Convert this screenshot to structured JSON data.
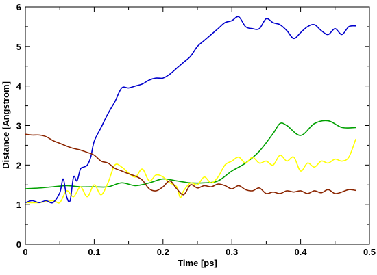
{
  "chart_data": {
    "type": "line",
    "xlabel": "Time [ps]",
    "ylabel": "Distance [Angstrom]",
    "xlim": [
      0,
      0.5
    ],
    "ylim": [
      0,
      6
    ],
    "x_ticks": [
      0,
      0.1,
      0.2,
      0.3,
      0.4,
      0.5
    ],
    "x_tick_labels": [
      "0",
      "0.1",
      "0.2",
      "0.3",
      "0.4",
      "0.5"
    ],
    "y_ticks": [
      0,
      1,
      2,
      3,
      4,
      5,
      6
    ],
    "y_tick_labels": [
      "0",
      "1",
      "2",
      "3",
      "4",
      "5",
      "6"
    ],
    "grid": false,
    "legend": "none",
    "series": [
      {
        "color": "#00a000",
        "x": [
          0.0,
          0.02,
          0.04,
          0.06,
          0.08,
          0.1,
          0.12,
          0.14,
          0.16,
          0.18,
          0.2,
          0.22,
          0.24,
          0.26,
          0.28,
          0.3,
          0.32,
          0.34,
          0.36,
          0.37,
          0.38,
          0.4,
          0.42,
          0.44,
          0.46,
          0.48
        ],
        "y": [
          1.4,
          1.42,
          1.45,
          1.48,
          1.45,
          1.45,
          1.45,
          1.55,
          1.48,
          1.55,
          1.65,
          1.6,
          1.55,
          1.55,
          1.6,
          1.85,
          2.05,
          2.35,
          2.8,
          3.05,
          3.0,
          2.75,
          3.05,
          3.12,
          2.95,
          2.95
        ]
      },
      {
        "color": "#ffff00",
        "x": [
          0.0,
          0.02,
          0.04,
          0.05,
          0.06,
          0.07,
          0.08,
          0.09,
          0.1,
          0.11,
          0.12,
          0.13,
          0.14,
          0.15,
          0.16,
          0.17,
          0.18,
          0.19,
          0.2,
          0.21,
          0.22,
          0.225,
          0.23,
          0.24,
          0.25,
          0.26,
          0.27,
          0.28,
          0.29,
          0.3,
          0.31,
          0.32,
          0.33,
          0.34,
          0.35,
          0.36,
          0.37,
          0.38,
          0.39,
          0.4,
          0.41,
          0.42,
          0.43,
          0.44,
          0.45,
          0.46,
          0.47,
          0.48
        ],
        "y": [
          1.05,
          1.05,
          1.1,
          1.05,
          1.35,
          1.2,
          1.45,
          1.2,
          1.5,
          1.25,
          1.55,
          2.0,
          1.95,
          1.8,
          1.7,
          1.9,
          1.6,
          1.75,
          1.7,
          1.55,
          1.45,
          1.18,
          1.35,
          1.55,
          1.5,
          1.7,
          1.55,
          1.7,
          2.0,
          2.1,
          2.2,
          2.05,
          2.2,
          2.05,
          2.1,
          2.0,
          2.25,
          2.1,
          2.2,
          1.85,
          2.05,
          1.95,
          2.1,
          2.05,
          2.15,
          2.1,
          2.2,
          2.65
        ]
      },
      {
        "color": "#0000cc",
        "x": [
          0.0,
          0.01,
          0.02,
          0.03,
          0.04,
          0.05,
          0.055,
          0.06,
          0.065,
          0.07,
          0.075,
          0.08,
          0.085,
          0.09,
          0.095,
          0.1,
          0.11,
          0.12,
          0.13,
          0.14,
          0.15,
          0.16,
          0.17,
          0.18,
          0.19,
          0.2,
          0.21,
          0.22,
          0.23,
          0.24,
          0.25,
          0.26,
          0.27,
          0.28,
          0.29,
          0.3,
          0.31,
          0.32,
          0.33,
          0.34,
          0.35,
          0.36,
          0.37,
          0.38,
          0.39,
          0.4,
          0.41,
          0.42,
          0.43,
          0.44,
          0.45,
          0.46,
          0.47,
          0.48
        ],
        "y": [
          1.05,
          1.1,
          1.05,
          1.1,
          1.05,
          1.3,
          1.65,
          1.2,
          1.1,
          1.7,
          1.6,
          1.9,
          1.95,
          2.0,
          2.2,
          2.6,
          2.95,
          3.3,
          3.6,
          3.95,
          3.95,
          4.0,
          4.05,
          4.15,
          4.2,
          4.2,
          4.3,
          4.45,
          4.6,
          4.75,
          5.0,
          5.15,
          5.3,
          5.45,
          5.6,
          5.65,
          5.75,
          5.5,
          5.45,
          5.45,
          5.7,
          5.6,
          5.55,
          5.4,
          5.2,
          5.35,
          5.5,
          5.55,
          5.4,
          5.3,
          5.45,
          5.3,
          5.5,
          5.52
        ]
      },
      {
        "color": "#8b2500",
        "x": [
          0.0,
          0.01,
          0.02,
          0.03,
          0.04,
          0.05,
          0.06,
          0.07,
          0.08,
          0.09,
          0.1,
          0.11,
          0.12,
          0.13,
          0.14,
          0.15,
          0.16,
          0.17,
          0.18,
          0.19,
          0.2,
          0.21,
          0.22,
          0.23,
          0.24,
          0.25,
          0.26,
          0.27,
          0.28,
          0.29,
          0.3,
          0.31,
          0.32,
          0.33,
          0.34,
          0.35,
          0.36,
          0.37,
          0.38,
          0.39,
          0.4,
          0.41,
          0.42,
          0.43,
          0.44,
          0.45,
          0.46,
          0.47,
          0.48
        ],
        "y": [
          2.78,
          2.76,
          2.76,
          2.72,
          2.62,
          2.55,
          2.48,
          2.42,
          2.38,
          2.32,
          2.25,
          2.1,
          2.05,
          1.92,
          1.85,
          1.78,
          1.72,
          1.62,
          1.4,
          1.35,
          1.45,
          1.6,
          1.4,
          1.25,
          1.5,
          1.42,
          1.48,
          1.45,
          1.52,
          1.48,
          1.4,
          1.48,
          1.38,
          1.35,
          1.42,
          1.28,
          1.32,
          1.28,
          1.35,
          1.32,
          1.35,
          1.28,
          1.35,
          1.3,
          1.38,
          1.28,
          1.32,
          1.38,
          1.36
        ]
      }
    ]
  }
}
